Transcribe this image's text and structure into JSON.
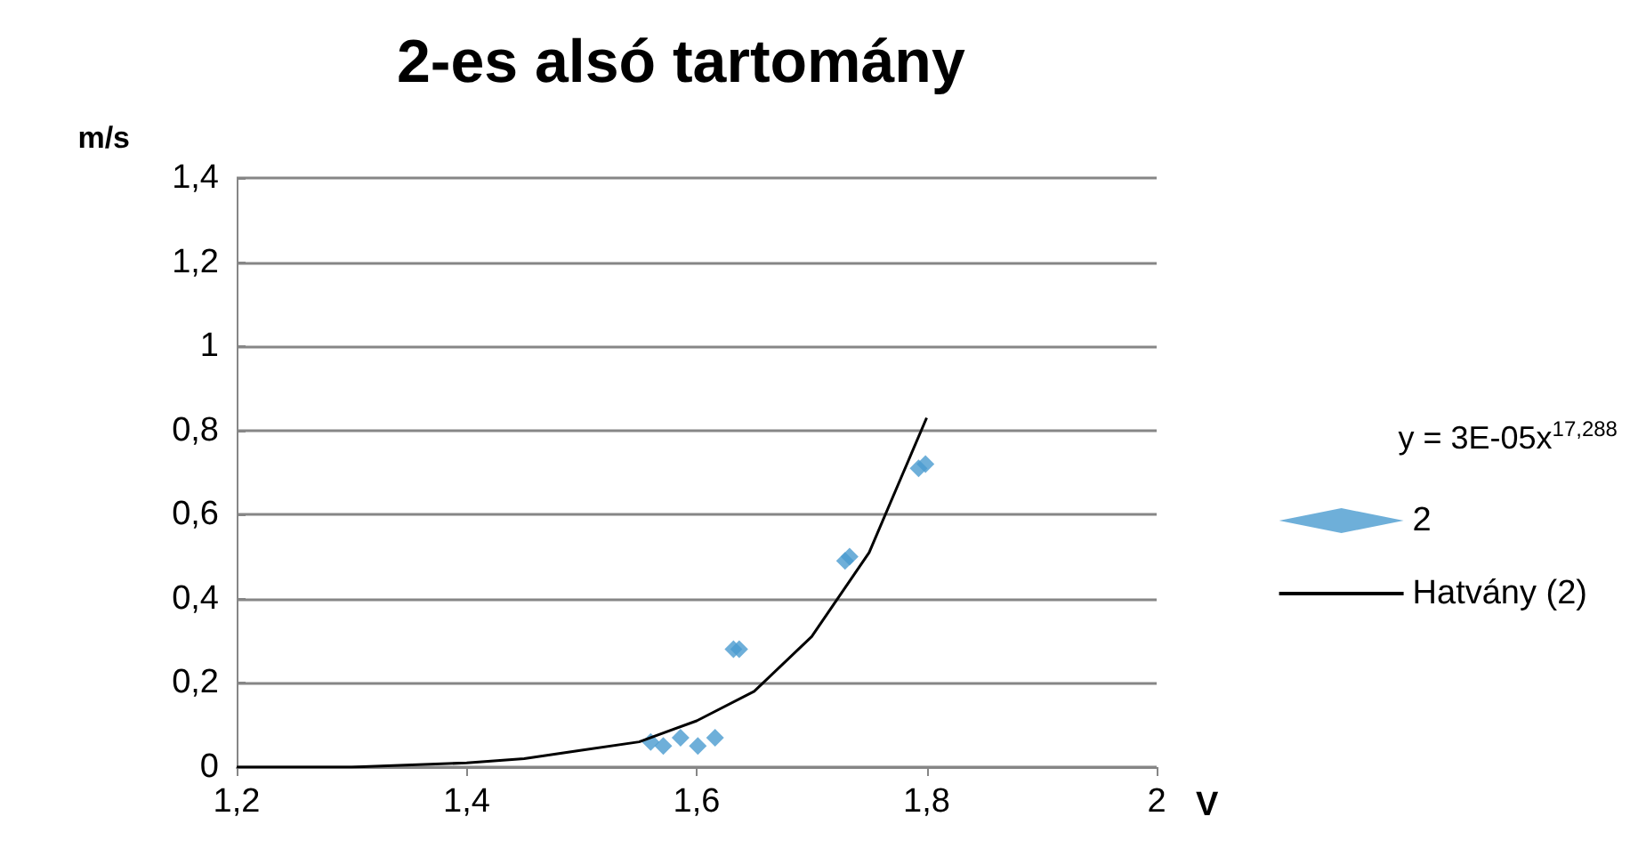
{
  "chart_data": {
    "type": "scatter",
    "title": "2-es alsó tartomány",
    "xlabel": "V",
    "ylabel": "m/s",
    "annotations": [
      "y = 3E-05x$^{17,288}$"
    ],
    "series": [
      {
        "name": "2",
        "color": "#4a9bd0",
        "marker": "diamond",
        "x": [
          1.56,
          1.571,
          1.586,
          1.601,
          1.616,
          1.632,
          1.637,
          1.729,
          1.733,
          1.793,
          1.799
        ],
        "values": [
          0.06,
          0.05,
          0.07,
          0.05,
          0.07,
          0.28,
          0.28,
          0.49,
          0.5,
          0.71,
          0.72
        ]
      },
      {
        "name": "Hatvány (2)",
        "type": "line",
        "color": "#000000",
        "line_style": "solid",
        "marker": "none",
        "x": [
          1.2,
          1.3,
          1.4,
          1.45,
          1.5,
          1.55,
          1.6,
          1.65,
          1.7,
          1.75,
          1.8
        ],
        "values": [
          0,
          0,
          0.01,
          0.02,
          0.04,
          0.06,
          0.11,
          0.18,
          0.31,
          0.51,
          0.83
        ]
      }
    ],
    "xlim": [
      1.2,
      2
    ],
    "xticks": [
      {
        "value": 1.2,
        "label": "1,2"
      },
      {
        "value": 1.4,
        "label": "1,4"
      },
      {
        "value": 1.6,
        "label": "1,6"
      },
      {
        "value": 1.8,
        "label": "1,8"
      },
      {
        "value": 2,
        "label": "2"
      }
    ],
    "ylim": [
      0,
      1.4
    ],
    "yticks": [
      0,
      {
        "value": 0.2,
        "label": "0,2"
      },
      {
        "value": 0.4,
        "label": "0,4"
      },
      {
        "value": 0.6,
        "label": "0,6"
      },
      {
        "value": 0.8,
        "label": "0,8"
      },
      1,
      {
        "value": 1.2,
        "label": "1,2"
      },
      {
        "value": 1.4,
        "label": "1,4"
      }
    ],
    "grid": "y",
    "legend": "right"
  }
}
